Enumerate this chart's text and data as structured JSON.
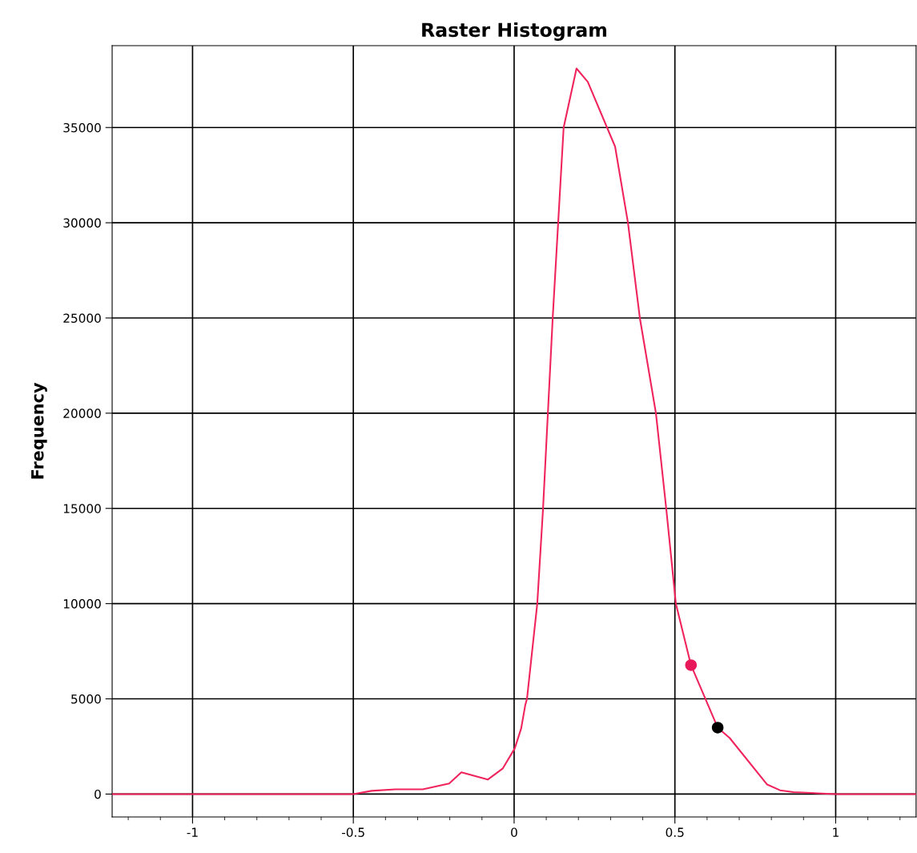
{
  "chart_data": {
    "type": "line",
    "title": "Raster Histogram",
    "ylabel": "Frequency",
    "series": [
      {
        "color": "#f0245c",
        "x": [
          -1.25,
          -0.5,
          -0.443,
          -0.369,
          -0.284,
          -0.202,
          -0.164,
          -0.082,
          -0.035,
          0.002,
          0.022,
          0.035,
          0.04,
          0.072,
          0.09,
          0.105,
          0.12,
          0.137,
          0.154,
          0.194,
          0.229,
          0.314,
          0.354,
          0.391,
          0.441,
          0.473,
          0.503,
          0.55,
          0.633,
          0.67,
          0.787,
          0.827,
          0.869,
          1.0,
          1.25
        ],
        "values": [
          0,
          0,
          170,
          250,
          250,
          550,
          1140,
          760,
          1350,
          2400,
          3450,
          4700,
          5000,
          10000,
          15000,
          20000,
          25000,
          30000,
          35000,
          38100,
          37400,
          34000,
          30000,
          25000,
          20000,
          15000,
          10000,
          6770,
          3490,
          2950,
          500,
          200,
          100,
          0,
          0
        ]
      },
      {
        "type": "scatter",
        "color": "#e8195a",
        "marker": "circle",
        "x": [
          0.55
        ],
        "values": [
          6770
        ]
      },
      {
        "type": "scatter",
        "color": "#000000",
        "marker": "circle",
        "x": [
          0.633
        ],
        "values": [
          3490
        ]
      }
    ],
    "xlim": [
      -1.25,
      1.25
    ],
    "ylim": [
      -1200,
      39300
    ],
    "xticks": [
      {
        "value": -1.2,
        "label": null
      },
      {
        "value": -1.1,
        "label": null
      },
      -1,
      {
        "value": -0.9,
        "label": null
      },
      {
        "value": -0.8,
        "label": null
      },
      {
        "value": -0.7,
        "label": null
      },
      {
        "value": -0.6,
        "label": null
      },
      -0.5,
      {
        "value": -0.4,
        "label": null
      },
      {
        "value": -0.3,
        "label": null
      },
      {
        "value": -0.2,
        "label": null
      },
      {
        "value": -0.1,
        "label": null
      },
      0,
      {
        "value": 0.1,
        "label": null
      },
      {
        "value": 0.2,
        "label": null
      },
      {
        "value": 0.3,
        "label": null
      },
      {
        "value": 0.4,
        "label": null
      },
      0.5,
      {
        "value": 0.6,
        "label": null
      },
      {
        "value": 0.7,
        "label": null
      },
      {
        "value": 0.8,
        "label": null
      },
      {
        "value": 0.9,
        "label": null
      },
      1,
      {
        "value": 1.1,
        "label": null
      },
      {
        "value": 1.2,
        "label": null
      }
    ],
    "yticks": [
      0,
      5000,
      10000,
      15000,
      20000,
      25000,
      30000,
      35000
    ],
    "grid": true,
    "marker": "none",
    "line_style": "solid"
  }
}
